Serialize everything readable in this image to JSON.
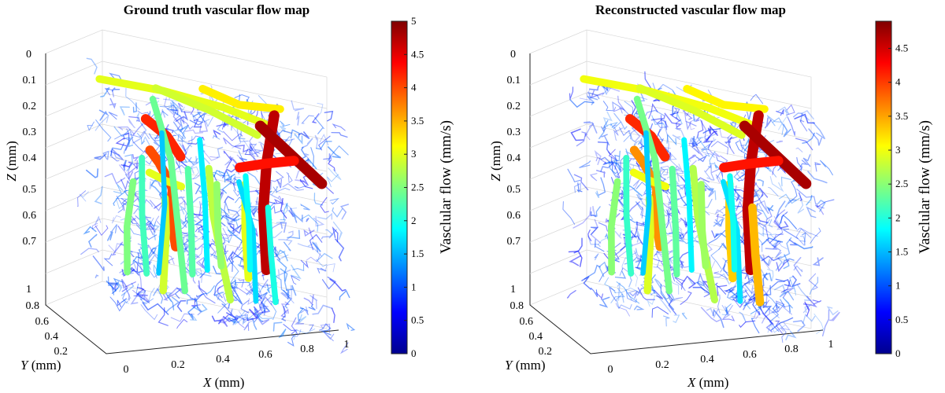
{
  "chart_data": [
    {
      "type": "3d-vessel-flow-map",
      "title": "Ground truth vascular flow map",
      "xlabel_var": "X",
      "xlabel_unit": " (mm)",
      "ylabel_var": "Y",
      "ylabel_unit": " (mm)",
      "zlabel_var": "Z",
      "zlabel_unit": " (mm)",
      "x_ticks": [
        "0",
        "0.2",
        "0.4",
        "0.6",
        "0.8",
        "1"
      ],
      "y_ticks": [
        "0.2",
        "0.4",
        "0.6",
        "0.8",
        "1"
      ],
      "z_ticks": [
        "0",
        "0.1",
        "0.2",
        "0.3",
        "0.4",
        "0.5",
        "0.6",
        "0.7"
      ],
      "xlim": [
        0,
        1
      ],
      "ylim": [
        0.2,
        1
      ],
      "zlim": [
        0,
        0.75
      ],
      "colorbar": {
        "label": "Vasclular flow (mm/s)",
        "range": [
          0,
          5
        ],
        "ticks": [
          "0",
          "0.5",
          "1",
          "1.5",
          "2",
          "2.5",
          "3",
          "3.5",
          "4",
          "4.5",
          "5"
        ],
        "colormap": "jet"
      },
      "major_vessels": [
        {
          "flow": 3.0,
          "pts": [
            [
              0.05,
              0.85,
              0.02
            ],
            [
              0.35,
              0.85,
              0.03
            ],
            [
              0.62,
              0.8,
              0.06
            ],
            [
              0.8,
              0.75,
              0.1
            ]
          ]
        },
        {
          "flow": 2.9,
          "pts": [
            [
              0.3,
              0.8,
              0.02
            ],
            [
              0.55,
              0.78,
              0.08
            ],
            [
              0.75,
              0.7,
              0.15
            ]
          ]
        },
        {
          "flow": 3.2,
          "pts": [
            [
              0.55,
              0.9,
              0.0
            ],
            [
              0.7,
              0.82,
              0.04
            ],
            [
              0.88,
              0.78,
              0.03
            ]
          ]
        },
        {
          "flow": 4.7,
          "pts": [
            [
              0.8,
              0.6,
              0.05
            ],
            [
              0.75,
              0.55,
              0.25
            ],
            [
              0.72,
              0.5,
              0.45
            ],
            [
              0.72,
              0.45,
              0.7
            ]
          ]
        },
        {
          "flow": 4.8,
          "pts": [
            [
              0.72,
              0.55,
              0.1
            ],
            [
              0.85,
              0.5,
              0.2
            ],
            [
              0.98,
              0.45,
              0.3
            ]
          ]
        },
        {
          "flow": 4.2,
          "pts": [
            [
              0.08,
              0.2,
              0.12
            ],
            [
              0.18,
              0.2,
              0.18
            ],
            [
              0.25,
              0.22,
              0.26
            ]
          ]
        },
        {
          "flow": 4.0,
          "pts": [
            [
              0.1,
              0.2,
              0.25
            ],
            [
              0.15,
              0.22,
              0.3
            ],
            [
              0.22,
              0.25,
              0.4
            ],
            [
              0.22,
              0.28,
              0.52
            ],
            [
              0.25,
              0.3,
              0.65
            ]
          ]
        },
        {
          "flow": 4.3,
          "pts": [
            [
              0.58,
              0.4,
              0.28
            ],
            [
              0.7,
              0.42,
              0.25
            ],
            [
              0.85,
              0.45,
              0.22
            ]
          ]
        },
        {
          "flow": 3.0,
          "pts": [
            [
              0.12,
              0.28,
              0.35
            ],
            [
              0.22,
              0.35,
              0.38
            ],
            [
              0.32,
              0.45,
              0.4
            ]
          ]
        },
        {
          "flow": 2.9,
          "pts": [
            [
              0.2,
              0.3,
              0.45
            ],
            [
              0.22,
              0.35,
              0.6
            ],
            [
              0.22,
              0.4,
              0.85
            ]
          ]
        },
        {
          "flow": 2.8,
          "pts": [
            [
              0.42,
              0.35,
              0.3
            ],
            [
              0.45,
              0.38,
              0.5
            ],
            [
              0.5,
              0.4,
              0.7
            ],
            [
              0.55,
              0.45,
              0.85
            ]
          ]
        },
        {
          "flow": 3.0,
          "pts": [
            [
              0.62,
              0.45,
              0.35
            ],
            [
              0.62,
              0.45,
              0.55
            ],
            [
              0.65,
              0.5,
              0.75
            ]
          ]
        },
        {
          "flow": 2.4,
          "pts": [
            [
              0.2,
              0.5,
              0.05
            ],
            [
              0.3,
              0.55,
              0.3
            ],
            [
              0.35,
              0.6,
              0.6
            ],
            [
              0.38,
              0.6,
              0.85
            ]
          ]
        },
        {
          "flow": 2.2,
          "pts": [
            [
              0.12,
              0.4,
              0.3
            ],
            [
              0.15,
              0.5,
              0.55
            ],
            [
              0.2,
              0.6,
              0.8
            ]
          ]
        },
        {
          "flow": 1.8,
          "pts": [
            [
              0.45,
              0.6,
              0.2
            ],
            [
              0.48,
              0.62,
              0.45
            ],
            [
              0.5,
              0.65,
              0.75
            ]
          ]
        },
        {
          "flow": 1.7,
          "pts": [
            [
              0.62,
              0.55,
              0.35
            ],
            [
              0.7,
              0.6,
              0.55
            ],
            [
              0.72,
              0.62,
              0.85
            ]
          ]
        },
        {
          "flow": 2.0,
          "pts": [
            [
              0.8,
              0.7,
              0.45
            ],
            [
              0.82,
              0.72,
              0.65
            ],
            [
              0.85,
              0.75,
              0.85
            ]
          ]
        },
        {
          "flow": 1.6,
          "pts": [
            [
              0.3,
              0.7,
              0.2
            ],
            [
              0.32,
              0.72,
              0.5
            ],
            [
              0.3,
              0.75,
              0.8
            ]
          ]
        },
        {
          "flow": 2.5,
          "pts": [
            [
              0.05,
              0.3,
              0.4
            ],
            [
              0.05,
              0.4,
              0.6
            ],
            [
              0.08,
              0.5,
              0.8
            ]
          ]
        },
        {
          "flow": 1.9,
          "pts": [
            [
              0.55,
              0.2,
              0.3
            ],
            [
              0.58,
              0.25,
              0.5
            ],
            [
              0.6,
              0.3,
              0.7
            ]
          ]
        },
        {
          "flow": 2.3,
          "pts": [
            [
              0.25,
              0.1,
              0.3
            ],
            [
              0.28,
              0.15,
              0.55
            ],
            [
              0.3,
              0.2,
              0.75
            ]
          ]
        },
        {
          "flow": 2.6,
          "pts": [
            [
              0.4,
              0.15,
              0.35
            ],
            [
              0.42,
              0.2,
              0.55
            ],
            [
              0.45,
              0.25,
              0.7
            ]
          ]
        }
      ]
    },
    {
      "type": "3d-vessel-flow-map",
      "title": "Reconstructed vascular flow map",
      "xlabel_var": "X",
      "xlabel_unit": " (mm)",
      "ylabel_var": "Y",
      "ylabel_unit": " (mm)",
      "zlabel_var": "Z",
      "zlabel_unit": " (mm)",
      "x_ticks": [
        "0",
        "0.2",
        "0.4",
        "0.6",
        "0.8",
        "1"
      ],
      "y_ticks": [
        "0.2",
        "0.4",
        "0.6",
        "0.8",
        "1"
      ],
      "z_ticks": [
        "0",
        "0.1",
        "0.2",
        "0.3",
        "0.4",
        "0.5",
        "0.6",
        "0.7"
      ],
      "xlim": [
        0,
        1
      ],
      "ylim": [
        0.2,
        1
      ],
      "zlim": [
        0,
        0.75
      ],
      "colorbar": {
        "label": "Vasclular flow (mm/s)",
        "range": [
          0,
          4.9
        ],
        "ticks": [
          "0",
          "0.5",
          "1",
          "1.5",
          "2",
          "2.5",
          "3",
          "3.5",
          "4",
          "4.5"
        ],
        "colormap": "jet"
      },
      "major_vessels": [
        {
          "flow": 3.0,
          "pts": [
            [
              0.05,
              0.85,
              0.02
            ],
            [
              0.35,
              0.85,
              0.03
            ],
            [
              0.62,
              0.8,
              0.06
            ],
            [
              0.8,
              0.75,
              0.1
            ]
          ]
        },
        {
          "flow": 2.9,
          "pts": [
            [
              0.3,
              0.8,
              0.02
            ],
            [
              0.55,
              0.78,
              0.08
            ],
            [
              0.75,
              0.7,
              0.15
            ]
          ]
        },
        {
          "flow": 3.1,
          "pts": [
            [
              0.55,
              0.9,
              0.0
            ],
            [
              0.7,
              0.82,
              0.04
            ],
            [
              0.88,
              0.78,
              0.03
            ]
          ]
        },
        {
          "flow": 4.6,
          "pts": [
            [
              0.8,
              0.6,
              0.05
            ],
            [
              0.75,
              0.55,
              0.25
            ],
            [
              0.72,
              0.5,
              0.45
            ],
            [
              0.72,
              0.45,
              0.7
            ]
          ]
        },
        {
          "flow": 4.7,
          "pts": [
            [
              0.72,
              0.55,
              0.1
            ],
            [
              0.85,
              0.5,
              0.2
            ],
            [
              0.98,
              0.45,
              0.3
            ]
          ]
        },
        {
          "flow": 4.1,
          "pts": [
            [
              0.08,
              0.2,
              0.12
            ],
            [
              0.18,
              0.2,
              0.18
            ],
            [
              0.25,
              0.22,
              0.26
            ]
          ]
        },
        {
          "flow": 3.6,
          "pts": [
            [
              0.1,
              0.2,
              0.25
            ],
            [
              0.15,
              0.22,
              0.3
            ],
            [
              0.22,
              0.25,
              0.4
            ],
            [
              0.22,
              0.28,
              0.52
            ],
            [
              0.25,
              0.3,
              0.65
            ]
          ]
        },
        {
          "flow": 4.2,
          "pts": [
            [
              0.58,
              0.4,
              0.28
            ],
            [
              0.7,
              0.42,
              0.25
            ],
            [
              0.85,
              0.45,
              0.22
            ]
          ]
        },
        {
          "flow": 3.0,
          "pts": [
            [
              0.12,
              0.28,
              0.35
            ],
            [
              0.22,
              0.35,
              0.38
            ],
            [
              0.32,
              0.45,
              0.4
            ]
          ]
        },
        {
          "flow": 2.9,
          "pts": [
            [
              0.2,
              0.3,
              0.45
            ],
            [
              0.22,
              0.35,
              0.6
            ],
            [
              0.22,
              0.4,
              0.85
            ]
          ]
        },
        {
          "flow": 2.7,
          "pts": [
            [
              0.42,
              0.35,
              0.3
            ],
            [
              0.45,
              0.38,
              0.5
            ],
            [
              0.5,
              0.4,
              0.7
            ],
            [
              0.55,
              0.45,
              0.85
            ]
          ]
        },
        {
          "flow": 3.3,
          "pts": [
            [
              0.62,
              0.45,
              0.35
            ],
            [
              0.62,
              0.45,
              0.55
            ],
            [
              0.65,
              0.5,
              0.75
            ]
          ]
        },
        {
          "flow": 2.4,
          "pts": [
            [
              0.2,
              0.5,
              0.05
            ],
            [
              0.3,
              0.55,
              0.3
            ],
            [
              0.35,
              0.6,
              0.6
            ],
            [
              0.38,
              0.6,
              0.85
            ]
          ]
        },
        {
          "flow": 2.1,
          "pts": [
            [
              0.12,
              0.4,
              0.3
            ],
            [
              0.15,
              0.5,
              0.55
            ],
            [
              0.2,
              0.6,
              0.8
            ]
          ]
        },
        {
          "flow": 1.8,
          "pts": [
            [
              0.45,
              0.6,
              0.2
            ],
            [
              0.48,
              0.62,
              0.45
            ],
            [
              0.5,
              0.65,
              0.75
            ]
          ]
        },
        {
          "flow": 1.7,
          "pts": [
            [
              0.62,
              0.55,
              0.35
            ],
            [
              0.7,
              0.6,
              0.55
            ],
            [
              0.72,
              0.62,
              0.85
            ]
          ]
        },
        {
          "flow": 3.4,
          "pts": [
            [
              0.8,
              0.7,
              0.45
            ],
            [
              0.82,
              0.72,
              0.65
            ],
            [
              0.85,
              0.75,
              0.85
            ]
          ]
        },
        {
          "flow": 1.6,
          "pts": [
            [
              0.3,
              0.7,
              0.2
            ],
            [
              0.32,
              0.72,
              0.5
            ],
            [
              0.3,
              0.75,
              0.8
            ]
          ]
        },
        {
          "flow": 2.5,
          "pts": [
            [
              0.05,
              0.3,
              0.4
            ],
            [
              0.05,
              0.4,
              0.6
            ],
            [
              0.08,
              0.5,
              0.8
            ]
          ]
        },
        {
          "flow": 1.9,
          "pts": [
            [
              0.55,
              0.2,
              0.3
            ],
            [
              0.58,
              0.25,
              0.5
            ],
            [
              0.6,
              0.3,
              0.7
            ]
          ]
        },
        {
          "flow": 2.3,
          "pts": [
            [
              0.25,
              0.1,
              0.3
            ],
            [
              0.28,
              0.15,
              0.55
            ],
            [
              0.3,
              0.2,
              0.75
            ]
          ]
        },
        {
          "flow": 2.6,
          "pts": [
            [
              0.4,
              0.15,
              0.35
            ],
            [
              0.42,
              0.2,
              0.55
            ],
            [
              0.45,
              0.25,
              0.7
            ]
          ]
        }
      ]
    }
  ]
}
